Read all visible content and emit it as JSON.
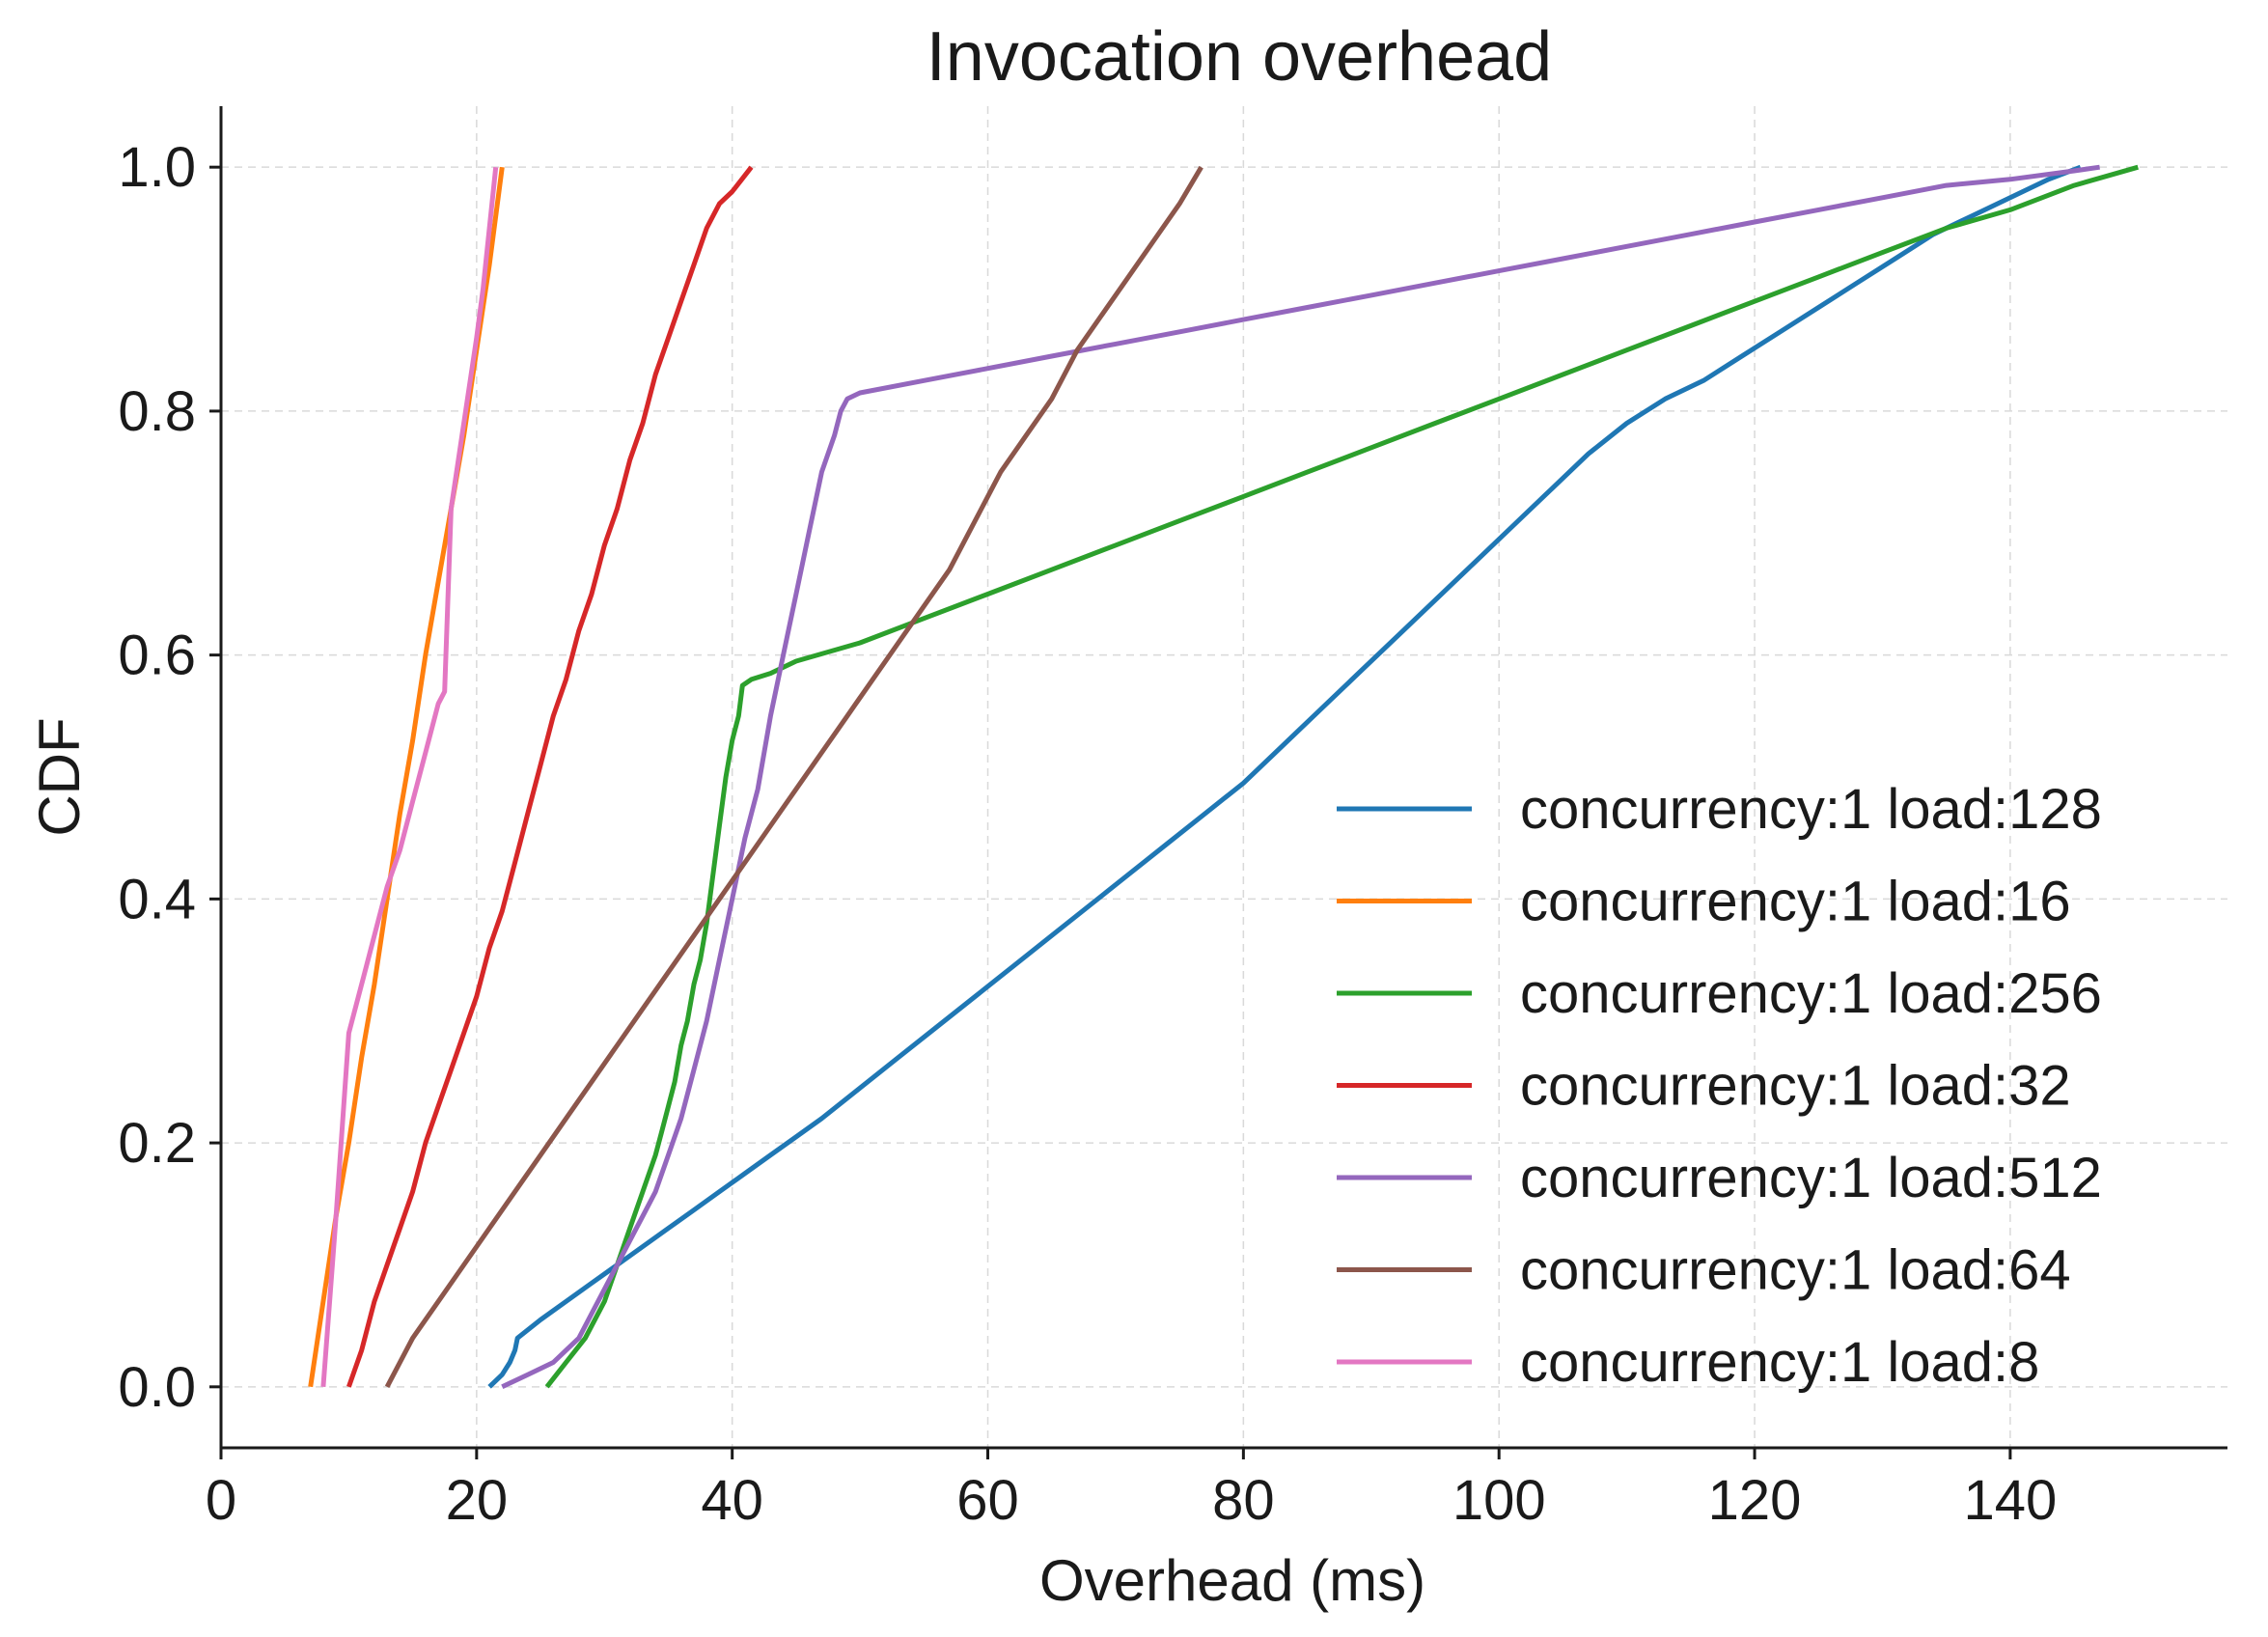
{
  "chart_data": {
    "type": "line",
    "title": "Invocation overhead",
    "xlabel": "Overhead (ms)",
    "ylabel": "CDF",
    "xlim": [
      0,
      157
    ],
    "ylim": [
      -0.05,
      1.05
    ],
    "xticks": [
      0,
      20,
      40,
      60,
      80,
      100,
      120,
      140
    ],
    "yticks": [
      0.0,
      0.2,
      0.4,
      0.6,
      0.8,
      1.0
    ],
    "xtick_labels": [
      "0",
      "20",
      "40",
      "60",
      "80",
      "100",
      "120",
      "140"
    ],
    "ytick_labels": [
      "0.0",
      "0.2",
      "0.4",
      "0.6",
      "0.8",
      "1.0"
    ],
    "grid": true,
    "legend_position": "lower-right",
    "series": [
      {
        "name": "concurrency:1 load:128",
        "color": "#1f77b4",
        "x": [
          21.0,
          22.0,
          22.6,
          23.0,
          23.2,
          25.0,
          27.0,
          29.0,
          31.0,
          33.0,
          35.0,
          37.0,
          39.0,
          41.0,
          43.0,
          45.0,
          47.0,
          50.0,
          53.0,
          56.0,
          59.0,
          62.0,
          65.0,
          68.0,
          71.0,
          74.0,
          77.0,
          80.0,
          83.0,
          86.0,
          89.0,
          92.0,
          95.0,
          98.0,
          101.0,
          104.0,
          107.0,
          110.0,
          113.0,
          116.0,
          119.0,
          122.0,
          125.0,
          128.0,
          131.0,
          134.0,
          137.0,
          140.0,
          143.0,
          145.5
        ],
        "y": [
          0.0,
          0.01,
          0.02,
          0.03,
          0.04,
          0.055,
          0.07,
          0.085,
          0.1,
          0.115,
          0.13,
          0.145,
          0.16,
          0.175,
          0.19,
          0.205,
          0.22,
          0.245,
          0.27,
          0.295,
          0.32,
          0.345,
          0.37,
          0.395,
          0.42,
          0.445,
          0.47,
          0.495,
          0.525,
          0.555,
          0.585,
          0.615,
          0.645,
          0.675,
          0.705,
          0.735,
          0.765,
          0.79,
          0.81,
          0.825,
          0.845,
          0.865,
          0.885,
          0.905,
          0.925,
          0.945,
          0.96,
          0.975,
          0.99,
          1.0
        ]
      },
      {
        "name": "concurrency:1 load:16",
        "color": "#ff7f0e",
        "x": [
          7.0,
          8.0,
          9.0,
          10.0,
          11.0,
          12.0,
          13.0,
          14.0,
          15.0,
          16.0,
          17.0,
          18.0,
          19.0,
          20.0,
          21.0,
          22.0
        ],
        "y": [
          0.0,
          0.07,
          0.14,
          0.2,
          0.27,
          0.33,
          0.4,
          0.47,
          0.53,
          0.6,
          0.66,
          0.72,
          0.78,
          0.85,
          0.92,
          1.0
        ]
      },
      {
        "name": "concurrency:1 load:256",
        "color": "#2ca02c",
        "x": [
          25.5,
          27.0,
          28.5,
          30.0,
          31.0,
          32.0,
          33.0,
          34.0,
          34.5,
          35.0,
          35.5,
          36.0,
          36.5,
          37.0,
          37.5,
          38.0,
          38.5,
          39.0,
          39.5,
          40.0,
          40.5,
          40.8,
          41.5,
          43.0,
          45.0,
          50.0,
          55.0,
          60.0,
          65.0,
          70.0,
          75.0,
          80.0,
          85.0,
          90.0,
          95.0,
          100.0,
          105.0,
          110.0,
          115.0,
          120.0,
          125.0,
          130.0,
          135.0,
          140.0,
          145.0,
          150.0
        ],
        "y": [
          0.0,
          0.02,
          0.04,
          0.07,
          0.1,
          0.13,
          0.16,
          0.19,
          0.21,
          0.23,
          0.25,
          0.28,
          0.3,
          0.33,
          0.35,
          0.38,
          0.42,
          0.46,
          0.5,
          0.53,
          0.55,
          0.575,
          0.58,
          0.585,
          0.595,
          0.61,
          0.63,
          0.65,
          0.67,
          0.69,
          0.71,
          0.73,
          0.75,
          0.77,
          0.79,
          0.81,
          0.83,
          0.85,
          0.87,
          0.89,
          0.91,
          0.93,
          0.95,
          0.965,
          0.985,
          1.0
        ]
      },
      {
        "name": "concurrency:1 load:32",
        "color": "#d62728",
        "x": [
          10.0,
          11.0,
          12.0,
          13.0,
          14.0,
          15.0,
          16.0,
          17.0,
          18.0,
          19.0,
          20.0,
          21.0,
          22.0,
          23.0,
          24.0,
          25.0,
          26.0,
          27.0,
          28.0,
          29.0,
          30.0,
          31.0,
          32.0,
          33.0,
          34.0,
          35.0,
          36.0,
          37.0,
          38.0,
          39.0,
          40.0,
          41.5
        ],
        "y": [
          0.0,
          0.03,
          0.07,
          0.1,
          0.13,
          0.16,
          0.2,
          0.23,
          0.26,
          0.29,
          0.32,
          0.36,
          0.39,
          0.43,
          0.47,
          0.51,
          0.55,
          0.58,
          0.62,
          0.65,
          0.69,
          0.72,
          0.76,
          0.79,
          0.83,
          0.86,
          0.89,
          0.92,
          0.95,
          0.97,
          0.98,
          1.0
        ]
      },
      {
        "name": "concurrency:1 load:512",
        "color": "#9467bd",
        "x": [
          22.0,
          24.0,
          26.0,
          28.0,
          29.0,
          30.0,
          31.0,
          32.0,
          33.0,
          34.0,
          35.0,
          36.0,
          37.0,
          38.0,
          39.0,
          40.0,
          41.0,
          42.0,
          43.0,
          44.0,
          45.0,
          46.0,
          47.0,
          48.0,
          48.5,
          49.0,
          50.0,
          55.0,
          60.0,
          65.0,
          70.0,
          75.0,
          80.0,
          85.0,
          90.0,
          95.0,
          100.0,
          105.0,
          110.0,
          115.0,
          120.0,
          125.0,
          130.0,
          135.0,
          140.0,
          145.0,
          147.0
        ],
        "y": [
          0.0,
          0.01,
          0.02,
          0.04,
          0.06,
          0.08,
          0.1,
          0.12,
          0.14,
          0.16,
          0.19,
          0.22,
          0.26,
          0.3,
          0.35,
          0.4,
          0.45,
          0.49,
          0.55,
          0.6,
          0.65,
          0.7,
          0.75,
          0.78,
          0.8,
          0.81,
          0.815,
          0.825,
          0.835,
          0.845,
          0.855,
          0.865,
          0.875,
          0.885,
          0.895,
          0.905,
          0.915,
          0.925,
          0.935,
          0.945,
          0.955,
          0.965,
          0.975,
          0.985,
          0.99,
          0.997,
          1.0
        ]
      },
      {
        "name": "concurrency:1 load:64",
        "color": "#8c564b",
        "x": [
          13.0,
          15.0,
          17.0,
          19.0,
          21.0,
          23.0,
          25.0,
          27.0,
          29.0,
          31.0,
          33.0,
          35.0,
          37.0,
          39.0,
          41.0,
          43.0,
          45.0,
          47.0,
          49.0,
          51.0,
          53.0,
          55.0,
          57.0,
          59.0,
          61.0,
          63.0,
          65.0,
          67.0,
          69.0,
          71.0,
          73.0,
          75.0,
          76.7
        ],
        "y": [
          0.0,
          0.04,
          0.07,
          0.1,
          0.13,
          0.16,
          0.19,
          0.22,
          0.25,
          0.28,
          0.31,
          0.34,
          0.37,
          0.4,
          0.43,
          0.46,
          0.49,
          0.52,
          0.55,
          0.58,
          0.61,
          0.64,
          0.67,
          0.71,
          0.75,
          0.78,
          0.81,
          0.85,
          0.88,
          0.91,
          0.94,
          0.97,
          1.0
        ]
      },
      {
        "name": "concurrency:1 load:8",
        "color": "#e377c2",
        "x": [
          8.0,
          9.0,
          10.0,
          11.0,
          12.0,
          13.0,
          14.0,
          15.0,
          16.0,
          17.0,
          17.5,
          18.0,
          19.0,
          20.0,
          20.5,
          21.0,
          21.5
        ],
        "y": [
          0.0,
          0.14,
          0.29,
          0.33,
          0.37,
          0.41,
          0.44,
          0.48,
          0.52,
          0.56,
          0.57,
          0.72,
          0.79,
          0.86,
          0.9,
          0.95,
          1.0
        ]
      }
    ]
  }
}
